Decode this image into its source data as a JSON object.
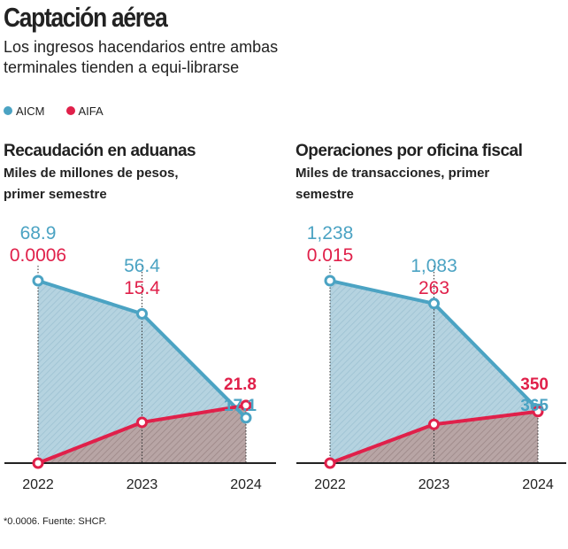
{
  "title": "Captación aérea",
  "subtitle": "Los ingresos hacendarios entre ambas terminales tienden a equi-librarse",
  "legend": [
    {
      "label": "AICM",
      "color": "#4ba3c3"
    },
    {
      "label": "AIFA",
      "color": "#e0204a"
    }
  ],
  "footnote": "*0.0006. Fuente: SHCP.",
  "chart_data": [
    {
      "type": "area",
      "title": "Recaudación en aduanas",
      "subtitle": "Miles de millones de pesos, primer semestre",
      "categories": [
        "2022",
        "2023",
        "2024"
      ],
      "series": [
        {
          "name": "AICM",
          "values": [
            68.9,
            56.4,
            17.1
          ],
          "labels": [
            "68.9",
            "56.4",
            "17.1"
          ]
        },
        {
          "name": "AIFA",
          "values": [
            0.0006,
            15.4,
            21.8
          ],
          "labels": [
            "0.0006",
            "15.4",
            "21.8"
          ]
        }
      ]
    },
    {
      "type": "area",
      "title": "Operaciones por oficina fiscal",
      "subtitle": "Miles de transacciones, primer semestre",
      "categories": [
        "2022",
        "2023",
        "2024"
      ],
      "series": [
        {
          "name": "AICM",
          "values": [
            1238,
            1083,
            365
          ],
          "labels": [
            "1,238",
            "1,083",
            "365"
          ]
        },
        {
          "name": "AIFA",
          "values": [
            0.015,
            263,
            350
          ],
          "labels": [
            "0.015",
            "263",
            "350"
          ]
        }
      ]
    }
  ]
}
